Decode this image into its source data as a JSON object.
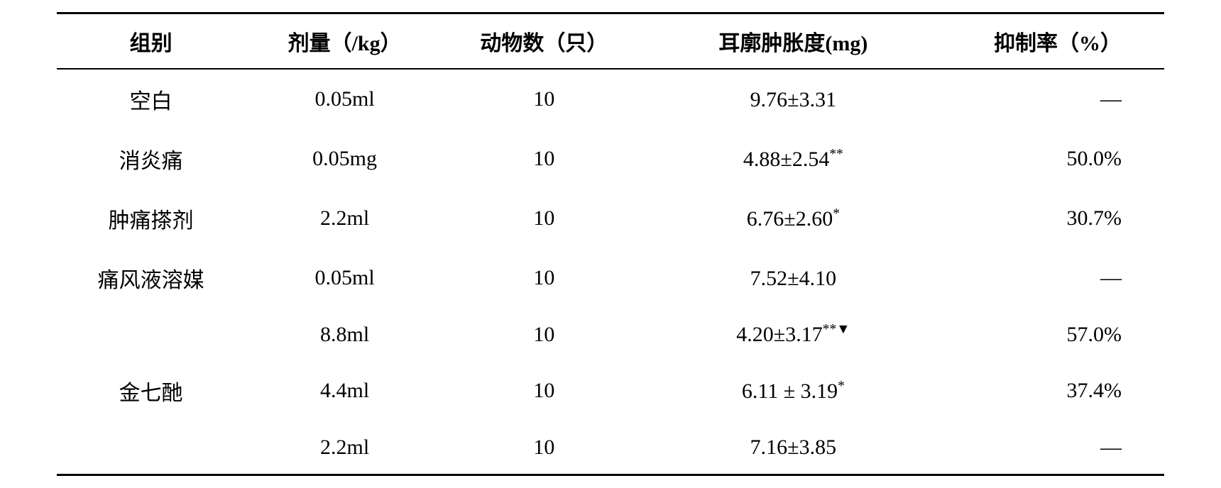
{
  "table": {
    "headers": {
      "group": "组别",
      "dose": "剂量（/kg）",
      "animals": "动物数（只）",
      "swelling": "耳廓肿胀度(mg)",
      "inhibition": "抑制率（%）"
    },
    "rows": [
      {
        "group": "空白",
        "dose": "0.05ml",
        "animals": "10",
        "swelling": "9.76±3.31",
        "swelling_marker": "",
        "inhibition": "—"
      },
      {
        "group": "消炎痛",
        "dose": "0.05mg",
        "animals": "10",
        "swelling": "4.88±2.54",
        "swelling_marker": "**",
        "inhibition": "50.0%"
      },
      {
        "group": "肿痛搽剂",
        "dose": "2.2ml",
        "animals": "10",
        "swelling": "6.76±2.60",
        "swelling_marker": "*",
        "inhibition": "30.7%"
      },
      {
        "group": "痛风液溶媒",
        "dose": "0.05ml",
        "animals": "10",
        "swelling": "7.52±4.10",
        "swelling_marker": "",
        "inhibition": "—"
      },
      {
        "group": "",
        "dose": "8.8ml",
        "animals": "10",
        "swelling": "4.20±3.17",
        "swelling_marker": "**▼",
        "inhibition": "57.0%"
      },
      {
        "group": "金七酏",
        "dose": "4.4ml",
        "animals": "10",
        "swelling": "6.11 ± 3.19",
        "swelling_marker": "*",
        "inhibition": "37.4%"
      },
      {
        "group": "",
        "dose": "2.2ml",
        "animals": "10",
        "swelling": "7.16±3.85",
        "swelling_marker": "",
        "inhibition": "—"
      }
    ],
    "styling": {
      "font_size": 30,
      "header_font_weight": "bold",
      "border_color": "#000000",
      "text_color": "#000000",
      "background_color": "#ffffff",
      "top_border_width": 3,
      "header_border_width": 2,
      "bottom_border_width": 3,
      "row_padding": 20
    }
  }
}
